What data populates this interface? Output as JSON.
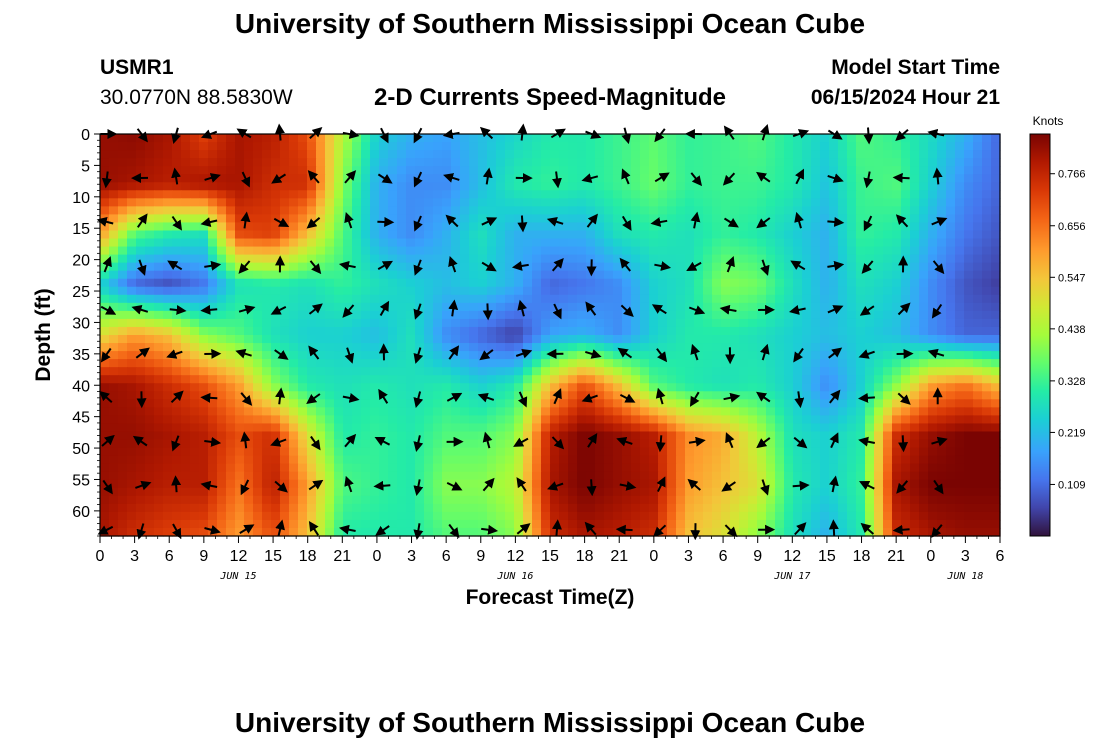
{
  "header": {
    "title": "University of Southern Mississippi Ocean Cube",
    "station": "USMR1",
    "coords": "30.0770N  88.5830W",
    "subtitle": "2-D Currents Speed-Magnitude",
    "model_start_label": "Model Start Time",
    "model_start_value": "06/15/2024 Hour 21"
  },
  "footer": {
    "title": "University of Southern Mississippi Ocean Cube"
  },
  "chart_data": {
    "type": "heatmap",
    "title": "2-D Currents Speed-Magnitude",
    "xlabel": "Forecast Time(Z)",
    "ylabel": "Depth (ft)",
    "x_range_hours": [
      0,
      78
    ],
    "y_range_ft": [
      0,
      64
    ],
    "x_tick_labels": [
      "0",
      "3",
      "6",
      "9",
      "12",
      "15",
      "18",
      "21",
      "0",
      "3",
      "6",
      "9",
      "12",
      "15",
      "18",
      "21",
      "0",
      "3",
      "6",
      "9",
      "12",
      "15",
      "18",
      "21",
      "0",
      "3",
      "6"
    ],
    "y_ticks": [
      0,
      5,
      10,
      15,
      20,
      25,
      30,
      35,
      40,
      45,
      50,
      55,
      60
    ],
    "date_labels": [
      {
        "label": "JUN 15",
        "hour": 12
      },
      {
        "label": "JUN 16",
        "hour": 36
      },
      {
        "label": "JUN 17",
        "hour": 60
      },
      {
        "label": "JUN 18",
        "hour": 75
      }
    ],
    "colorbar": {
      "unit": "Knots",
      "min": 0.0,
      "max": 0.85,
      "ticks": [
        0.766,
        0.656,
        0.547,
        0.438,
        0.328,
        0.219,
        0.109
      ]
    },
    "grid_depths": [
      0,
      8,
      16,
      24,
      32,
      40,
      48,
      56,
      64
    ],
    "grid_hours": [
      0,
      3,
      6,
      9,
      12,
      15,
      18,
      21,
      24,
      27,
      30,
      33,
      36,
      39,
      42,
      45,
      48,
      51,
      54,
      57,
      60,
      63,
      66,
      69,
      72,
      75,
      78
    ],
    "speed_knots": [
      [
        0.82,
        0.83,
        0.8,
        0.72,
        0.8,
        0.78,
        0.7,
        0.45,
        0.25,
        0.2,
        0.18,
        0.22,
        0.26,
        0.3,
        0.3,
        0.33,
        0.36,
        0.32,
        0.33,
        0.35,
        0.3,
        0.25,
        0.35,
        0.32,
        0.27,
        0.2,
        0.1
      ],
      [
        0.82,
        0.8,
        0.78,
        0.8,
        0.8,
        0.75,
        0.75,
        0.4,
        0.2,
        0.15,
        0.15,
        0.22,
        0.3,
        0.32,
        0.3,
        0.33,
        0.37,
        0.32,
        0.33,
        0.33,
        0.3,
        0.23,
        0.33,
        0.35,
        0.25,
        0.15,
        0.1
      ],
      [
        0.6,
        0.35,
        0.3,
        0.28,
        0.7,
        0.72,
        0.55,
        0.35,
        0.2,
        0.15,
        0.2,
        0.28,
        0.2,
        0.2,
        0.2,
        0.28,
        0.3,
        0.28,
        0.32,
        0.3,
        0.25,
        0.2,
        0.32,
        0.3,
        0.2,
        0.12,
        0.08
      ],
      [
        0.25,
        0.1,
        0.07,
        0.12,
        0.28,
        0.3,
        0.28,
        0.32,
        0.28,
        0.25,
        0.22,
        0.25,
        0.2,
        0.1,
        0.12,
        0.15,
        0.25,
        0.28,
        0.4,
        0.38,
        0.28,
        0.2,
        0.28,
        0.25,
        0.15,
        0.08,
        0.05
      ],
      [
        0.5,
        0.6,
        0.55,
        0.4,
        0.35,
        0.28,
        0.25,
        0.25,
        0.22,
        0.28,
        0.15,
        0.1,
        0.05,
        0.18,
        0.2,
        0.15,
        0.25,
        0.3,
        0.3,
        0.28,
        0.25,
        0.22,
        0.25,
        0.22,
        0.15,
        0.1,
        0.1
      ],
      [
        0.82,
        0.8,
        0.75,
        0.7,
        0.6,
        0.4,
        0.3,
        0.28,
        0.3,
        0.28,
        0.3,
        0.25,
        0.3,
        0.55,
        0.7,
        0.55,
        0.35,
        0.3,
        0.28,
        0.3,
        0.25,
        0.15,
        0.25,
        0.4,
        0.6,
        0.65,
        0.55
      ],
      [
        0.82,
        0.82,
        0.8,
        0.78,
        0.7,
        0.75,
        0.5,
        0.3,
        0.32,
        0.3,
        0.35,
        0.35,
        0.4,
        0.78,
        0.85,
        0.82,
        0.78,
        0.62,
        0.58,
        0.45,
        0.28,
        0.25,
        0.3,
        0.75,
        0.82,
        0.85,
        0.85
      ],
      [
        0.82,
        0.8,
        0.78,
        0.78,
        0.65,
        0.78,
        0.6,
        0.35,
        0.32,
        0.3,
        0.4,
        0.4,
        0.45,
        0.8,
        0.85,
        0.82,
        0.8,
        0.6,
        0.55,
        0.5,
        0.3,
        0.25,
        0.32,
        0.8,
        0.85,
        0.85,
        0.85
      ],
      [
        0.8,
        0.75,
        0.72,
        0.7,
        0.6,
        0.7,
        0.55,
        0.3,
        0.3,
        0.3,
        0.35,
        0.35,
        0.4,
        0.75,
        0.8,
        0.78,
        0.75,
        0.55,
        0.5,
        0.4,
        0.28,
        0.2,
        0.3,
        0.75,
        0.8,
        0.82,
        0.82
      ]
    ]
  }
}
